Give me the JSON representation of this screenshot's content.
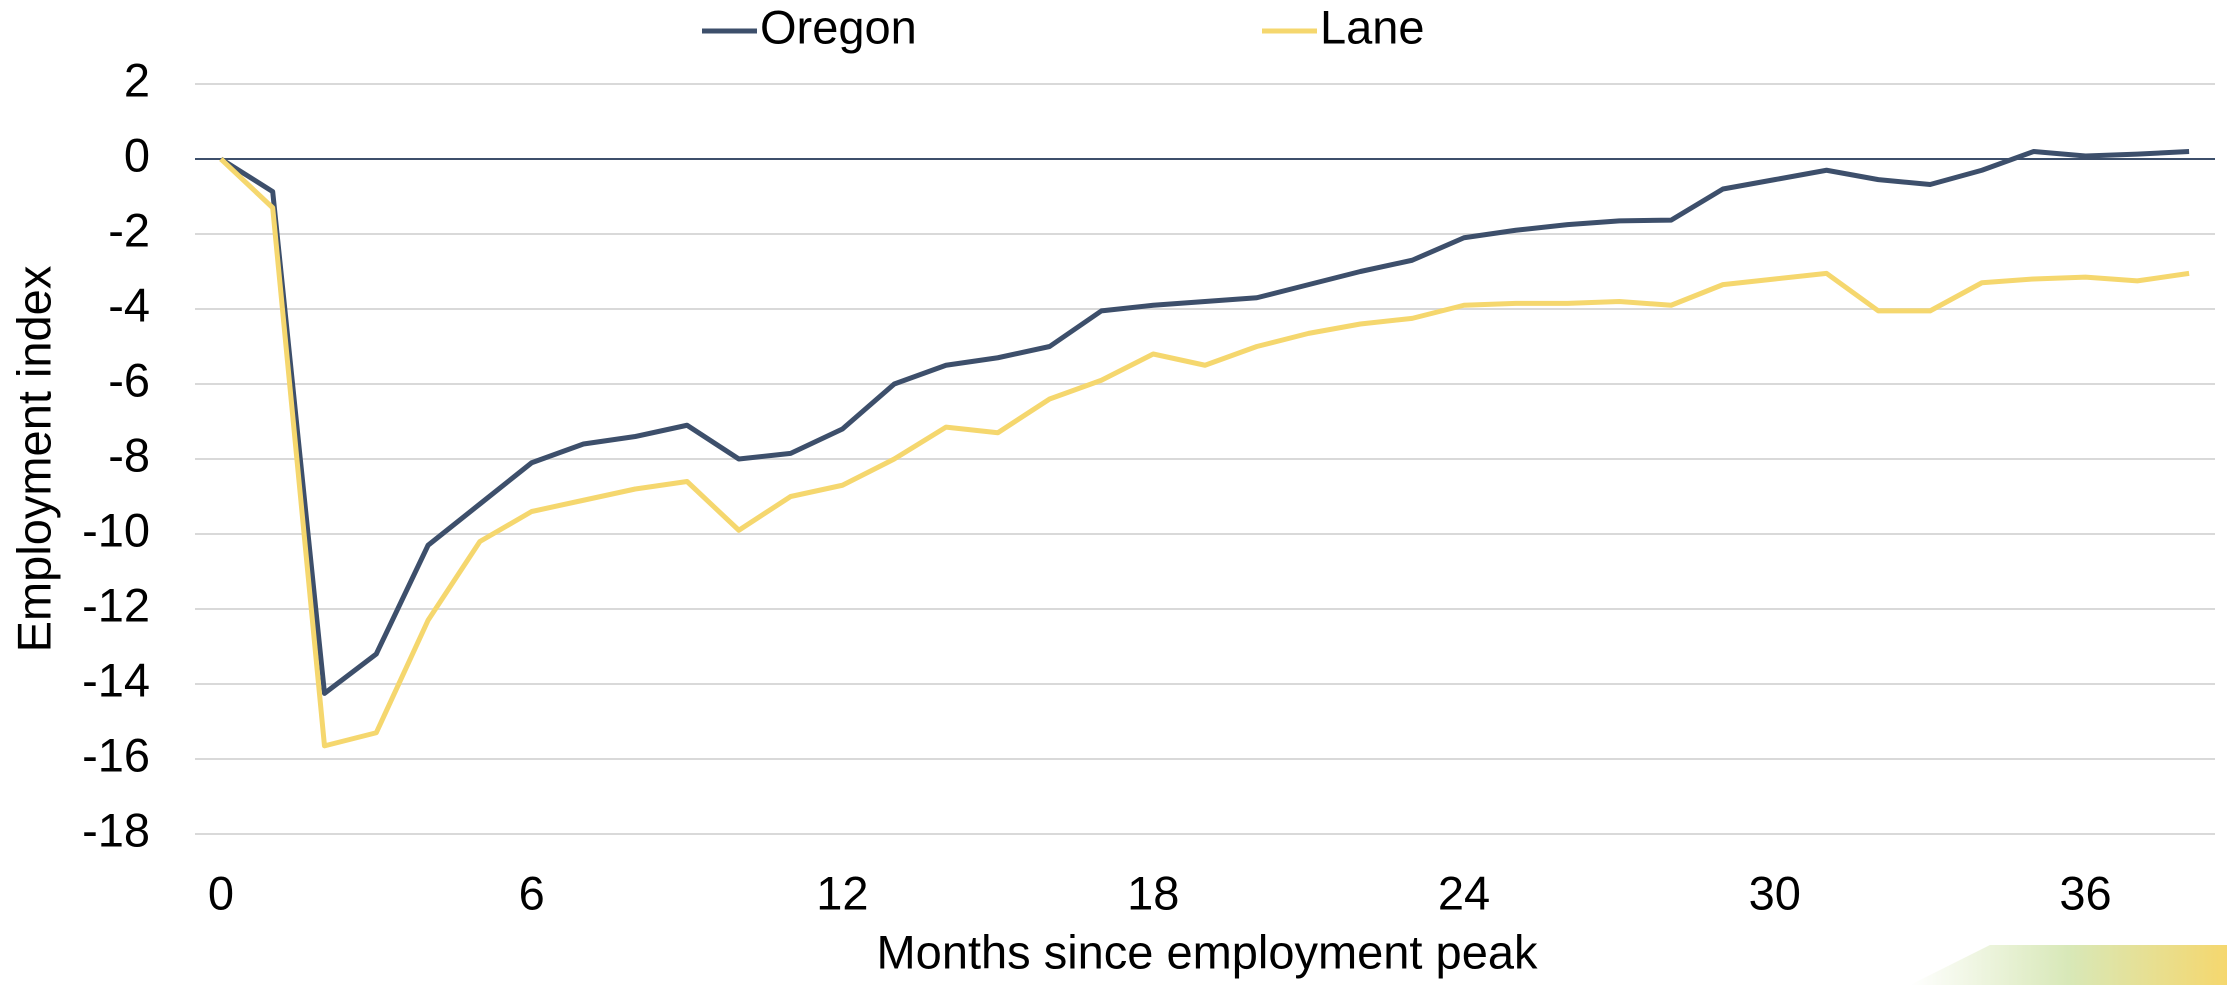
{
  "chart_data": {
    "type": "line",
    "x_label": "Months since employment peak",
    "y_label": "Employment index",
    "x": [
      0,
      1,
      2,
      3,
      4,
      5,
      6,
      7,
      8,
      9,
      10,
      11,
      12,
      13,
      14,
      15,
      16,
      17,
      18,
      19,
      20,
      21,
      22,
      23,
      24,
      25,
      26,
      27,
      28,
      29,
      30,
      31,
      32,
      33,
      34,
      35,
      36,
      37,
      38
    ],
    "series": [
      {
        "name": "Oregon",
        "color": "#3d4f6b",
        "values": [
          0,
          -0.87,
          -14.25,
          -13.2,
          -10.3,
          -9.2,
          -8.1,
          -7.6,
          -7.4,
          -7.1,
          -8.0,
          -7.85,
          -7.2,
          -6.0,
          -5.5,
          -5.3,
          -5.0,
          -4.05,
          -3.9,
          -3.8,
          -3.7,
          -3.35,
          -3.0,
          -2.7,
          -2.1,
          -1.9,
          -1.75,
          -1.65,
          -1.63,
          -0.8,
          -0.55,
          -0.3,
          -0.55,
          -0.68,
          -0.3,
          0.2,
          0.08,
          0.13,
          0.2
        ]
      },
      {
        "name": "Lane",
        "color": "#f5d76e",
        "values": [
          0,
          -1.3,
          -15.65,
          -15.3,
          -12.3,
          -10.2,
          -9.4,
          -9.1,
          -8.8,
          -8.6,
          -9.9,
          -9.0,
          -8.7,
          -8.0,
          -7.15,
          -7.3,
          -6.4,
          -5.9,
          -5.2,
          -5.5,
          -5.0,
          -4.65,
          -4.4,
          -4.25,
          -3.9,
          -3.85,
          -3.85,
          -3.8,
          -3.9,
          -3.35,
          -3.2,
          -3.05,
          -4.05,
          -4.05,
          -3.3,
          -3.2,
          -3.15,
          -3.25,
          -3.05
        ]
      }
    ],
    "xlim": [
      -0.5,
      38.5
    ],
    "xticks": [
      0,
      6,
      12,
      18,
      24,
      30,
      36
    ],
    "ylim": [
      -18,
      2
    ],
    "yticks": [
      2,
      0,
      -2,
      -4,
      -6,
      -8,
      -10,
      -12,
      -14,
      -16,
      -18
    ],
    "grid": true,
    "legend": "top"
  }
}
